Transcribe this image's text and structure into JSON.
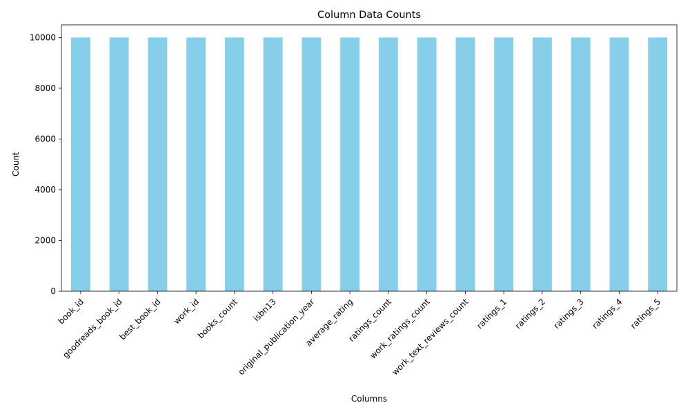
{
  "chart_data": {
    "type": "bar",
    "title": "Column Data Counts",
    "xlabel": "Columns",
    "ylabel": "Count",
    "categories": [
      "book_id",
      "goodreads_book_id",
      "best_book_id",
      "work_id",
      "books_count",
      "isbn13",
      "original_publication_year",
      "average_rating",
      "ratings_count",
      "work_ratings_count",
      "work_text_reviews_count",
      "ratings_1",
      "ratings_2",
      "ratings_3",
      "ratings_4",
      "ratings_5"
    ],
    "values": [
      10000,
      10000,
      10000,
      10000,
      10000,
      10000,
      10000,
      10000,
      10000,
      10000,
      10000,
      10000,
      10000,
      10000,
      10000,
      10000
    ],
    "ylim": [
      0,
      10500
    ],
    "yticks": [
      0,
      2000,
      4000,
      6000,
      8000,
      10000
    ],
    "grid": false,
    "legend": "none",
    "bar_color": "#87ceeb",
    "axis_color": "#000000"
  }
}
